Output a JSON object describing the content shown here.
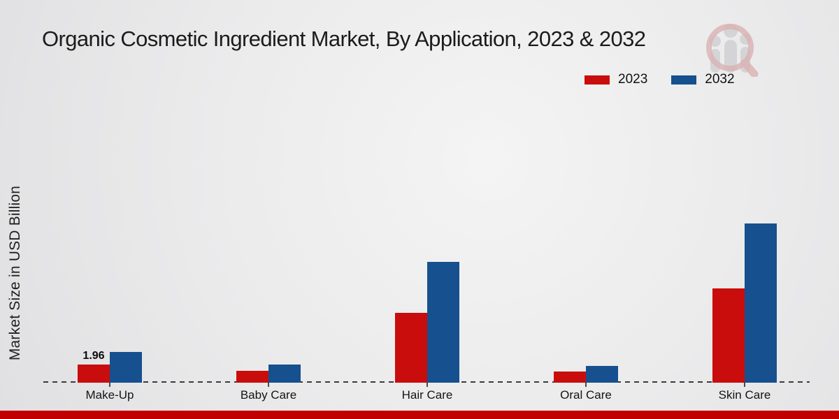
{
  "title": "Organic Cosmetic Ingredient Market, By Application, 2023 & 2032",
  "ylabel": "Market Size in USD Billion",
  "legend": {
    "position": "top-right",
    "entries": [
      "2023",
      "2032"
    ]
  },
  "colors": {
    "series_2023": "#c90d0d",
    "series_2032": "#16508e",
    "bottom_strip": "#c00000",
    "baseline": "#3b3b3b",
    "background": "#ebebec"
  },
  "watermark": {
    "name": "brand-logo-magnifier-people",
    "present": true
  },
  "chart_data": {
    "type": "bar",
    "title": "Organic Cosmetic Ingredient Market, By Application, 2023 & 2032",
    "xlabel": "",
    "ylabel": "Market Size in USD Billion",
    "categories": [
      "Make-Up",
      "Baby Care",
      "Hair Care",
      "Oral Care",
      "Skin Care"
    ],
    "series": [
      {
        "name": "2023",
        "color": "#c90d0d",
        "values": [
          1.96,
          1.2,
          7.65,
          1.15,
          10.3
        ]
      },
      {
        "name": "2032",
        "color": "#16508e",
        "values": [
          3.3,
          1.95,
          13.2,
          1.8,
          17.45
        ]
      }
    ],
    "bar_labels": [
      {
        "category_index": 0,
        "series_index": 0,
        "text": "1.96"
      }
    ],
    "ylim": [
      0,
      20
    ],
    "y_axis_visible": false,
    "grid": false,
    "baseline_style": "dashed",
    "legend_position": "top-right"
  }
}
